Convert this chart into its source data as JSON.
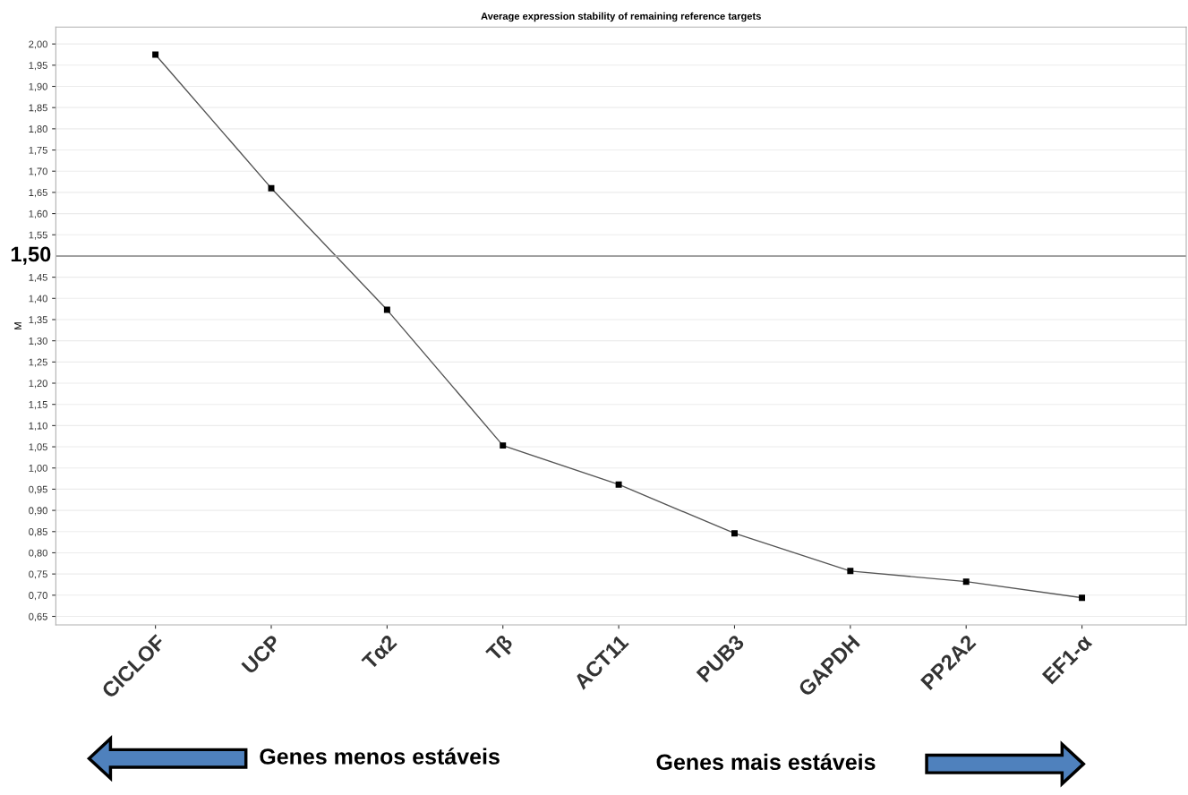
{
  "chart_data": {
    "type": "line",
    "title": "Average expression stability of remaining reference targets",
    "ylabel": "M",
    "categories": [
      "CICLOF",
      "UCP",
      "Tα2",
      "Tβ",
      "ACT11",
      "PUB3",
      "GAPDH",
      "PP2A2",
      "EF1-α"
    ],
    "series": [
      {
        "color": "#555555",
        "values": [
          1.975,
          1.66,
          1.373,
          1.053,
          0.961,
          0.846,
          0.757,
          0.732,
          0.694
        ]
      }
    ],
    "ylim": [
      0.63,
      2.04
    ],
    "yticks": [
      {
        "value": 0.65,
        "label": "0,65"
      },
      {
        "value": 0.7,
        "label": "0,70"
      },
      {
        "value": 0.75,
        "label": "0,75"
      },
      {
        "value": 0.8,
        "label": "0,80"
      },
      {
        "value": 0.85,
        "label": "0,85"
      },
      {
        "value": 0.9,
        "label": "0,90"
      },
      {
        "value": 0.95,
        "label": "0,95"
      },
      {
        "value": 1.0,
        "label": "1,00"
      },
      {
        "value": 1.05,
        "label": "1,05"
      },
      {
        "value": 1.1,
        "label": "1,10"
      },
      {
        "value": 1.15,
        "label": "1,15"
      },
      {
        "value": 1.2,
        "label": "1,20"
      },
      {
        "value": 1.25,
        "label": "1,25"
      },
      {
        "value": 1.3,
        "label": "1,30"
      },
      {
        "value": 1.35,
        "label": "1,35"
      },
      {
        "value": 1.4,
        "label": "1,40"
      },
      {
        "value": 1.45,
        "label": "1,45"
      },
      {
        "value": 1.55,
        "label": "1,55"
      },
      {
        "value": 1.6,
        "label": "1,60"
      },
      {
        "value": 1.65,
        "label": "1,65"
      },
      {
        "value": 1.7,
        "label": "1,70"
      },
      {
        "value": 1.75,
        "label": "1,75"
      },
      {
        "value": 1.8,
        "label": "1,80"
      },
      {
        "value": 1.85,
        "label": "1,85"
      },
      {
        "value": 1.9,
        "label": "1,90"
      },
      {
        "value": 1.95,
        "label": "1,95"
      },
      {
        "value": 2.0,
        "label": "2,00"
      }
    ],
    "ref_lines": [
      {
        "axis": "y",
        "value": 1.5,
        "label": "1,50",
        "color": "#a0a0a0"
      }
    ],
    "grid": "y",
    "marker": "square",
    "line_style": "solid",
    "annotations": [
      "Genes menos estáveis",
      "Genes mais estáveis"
    ]
  }
}
